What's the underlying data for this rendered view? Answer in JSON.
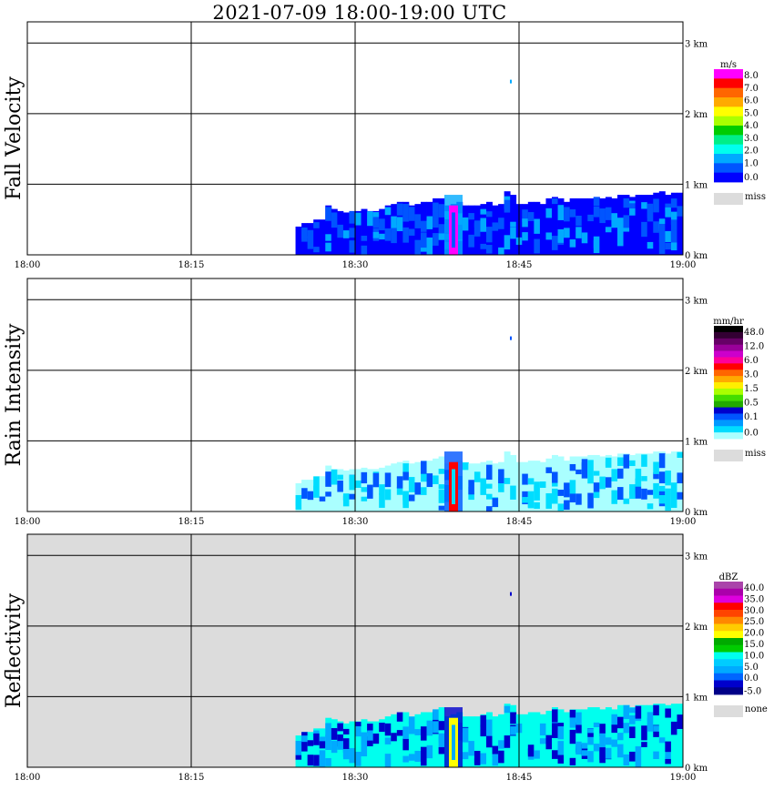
{
  "title": "2021-07-09   18:00-19:00 UTC",
  "x_tick_labels": [
    "18:00",
    "18:15",
    "18:30",
    "18:45",
    "19:00"
  ],
  "y_tick_labels": [
    "0 km",
    "1 km",
    "2 km",
    "3 km"
  ],
  "colors": {
    "frame": "#000000",
    "background": "#ffffff",
    "missing": "#dcdcdc"
  },
  "chart_data": [
    {
      "type": "heatmap",
      "ylabel": "Fall Velocity",
      "unit": "m/s",
      "x_range": [
        "18:00",
        "19:00"
      ],
      "y_range_km": [
        0,
        3.3
      ],
      "grid": true,
      "background": "#ffffff",
      "legend": {
        "placement": "right",
        "colors": [
          "#ff00ff",
          "#ff0000",
          "#ff6600",
          "#ffaa00",
          "#ffff00",
          "#aaff00",
          "#00cc00",
          "#00ee88",
          "#00ffee",
          "#00aaff",
          "#0055ff",
          "#0000ff"
        ],
        "labels": [
          "8.0",
          "7.0",
          "6.0",
          "5.0",
          "4.0",
          "3.0",
          "2.0",
          "1.0",
          "0.0"
        ],
        "missing_label": "miss"
      },
      "echo": {
        "top_km": [
          0.0,
          0.0,
          0.0,
          0.0,
          0.0,
          0.0,
          0.0,
          0.0,
          0.0,
          0.0,
          0.0,
          0.0,
          0.0,
          0.0,
          0.0,
          0.0,
          0.0,
          0.0,
          0.0,
          0.0,
          0.0,
          0.0,
          0.0,
          0.0,
          0.0,
          0.0,
          0.0,
          0.0,
          0.0,
          0.0,
          0.0,
          0.0,
          0.0,
          0.0,
          0.0,
          0.0,
          0.0,
          0.0,
          0.0,
          0.0,
          0.0,
          0.0,
          0.0,
          0.0,
          0.0,
          0.4,
          0.45,
          0.45,
          0.5,
          0.5,
          0.7,
          0.65,
          0.62,
          0.6,
          0.62,
          0.62,
          0.65,
          0.62,
          0.62,
          0.65,
          0.7,
          0.72,
          0.75,
          0.75,
          0.7,
          0.72,
          0.75,
          0.75,
          0.8,
          0.8,
          0.7,
          0.72,
          0.75,
          0.7,
          0.7,
          0.7,
          0.72,
          0.75,
          0.7,
          0.72,
          0.9,
          0.85,
          0.72,
          0.72,
          0.75,
          0.75,
          0.72,
          0.8,
          0.82,
          0.8,
          0.75,
          0.8,
          0.8,
          0.8,
          0.8,
          0.82,
          0.8,
          0.82,
          0.8,
          0.85,
          0.85,
          0.82,
          0.85,
          0.85,
          0.85,
          0.88,
          0.9,
          0.85,
          0.88,
          0.88
        ],
        "dominant_color": "#0000ff",
        "secondary_color": "#0055ff",
        "accent_color": "#00aaff",
        "core_color": "#ff00ff",
        "core_time": "18:39"
      }
    },
    {
      "type": "heatmap",
      "ylabel": "Rain Intensity",
      "unit": "mm/hr",
      "x_range": [
        "18:00",
        "19:00"
      ],
      "y_range_km": [
        0,
        3.3
      ],
      "grid": true,
      "background": "#ffffff",
      "legend": {
        "placement": "right",
        "colors": [
          "#000000",
          "#330033",
          "#660066",
          "#990099",
          "#cc00cc",
          "#ff0099",
          "#ff0000",
          "#ff6600",
          "#ffaa00",
          "#ffee00",
          "#aaff00",
          "#44dd00",
          "#22aa00",
          "#0000cc",
          "#0055ff",
          "#0099ff",
          "#00ddff",
          "#aaffff"
        ],
        "labels": [
          "48.0",
          "12.0",
          "6.0",
          "3.0",
          "1.5",
          "0.5",
          "0.1",
          "0.0"
        ],
        "missing_label": "miss"
      },
      "echo": {
        "top_km": [
          0.0,
          0.0,
          0.0,
          0.0,
          0.0,
          0.0,
          0.0,
          0.0,
          0.0,
          0.0,
          0.0,
          0.0,
          0.0,
          0.0,
          0.0,
          0.0,
          0.0,
          0.0,
          0.0,
          0.0,
          0.0,
          0.0,
          0.0,
          0.0,
          0.0,
          0.0,
          0.0,
          0.0,
          0.0,
          0.0,
          0.0,
          0.0,
          0.0,
          0.0,
          0.0,
          0.0,
          0.0,
          0.0,
          0.0,
          0.0,
          0.0,
          0.0,
          0.0,
          0.0,
          0.0,
          0.4,
          0.45,
          0.45,
          0.5,
          0.5,
          0.65,
          0.6,
          0.6,
          0.58,
          0.6,
          0.6,
          0.62,
          0.6,
          0.6,
          0.62,
          0.65,
          0.68,
          0.7,
          0.72,
          0.68,
          0.7,
          0.72,
          0.72,
          0.75,
          0.78,
          0.68,
          0.7,
          0.72,
          0.7,
          0.68,
          0.68,
          0.7,
          0.72,
          0.68,
          0.7,
          0.85,
          0.8,
          0.7,
          0.7,
          0.72,
          0.72,
          0.7,
          0.75,
          0.8,
          0.78,
          0.72,
          0.78,
          0.78,
          0.78,
          0.8,
          0.8,
          0.78,
          0.8,
          0.78,
          0.82,
          0.82,
          0.8,
          0.82,
          0.82,
          0.82,
          0.85,
          0.85,
          0.82,
          0.85,
          0.85
        ],
        "dominant_color": "#aaffff",
        "secondary_color": "#00ddff",
        "accent_color": "#0055ff",
        "core_color": "#ff0000",
        "core_time": "18:39"
      }
    },
    {
      "type": "heatmap",
      "ylabel": "Reflectivity",
      "unit": "dBZ",
      "x_range": [
        "18:00",
        "19:00"
      ],
      "y_range_km": [
        0,
        3.3
      ],
      "grid": true,
      "background": "#dcdcdc",
      "legend": {
        "placement": "right",
        "colors": [
          "#aa44aa",
          "#aa00aa",
          "#dd00dd",
          "#ff0000",
          "#ff4400",
          "#ff8800",
          "#ffcc00",
          "#ffff00",
          "#00aa00",
          "#00cc00",
          "#00ffee",
          "#00ccff",
          "#00aaff",
          "#0066ff",
          "#0000cc",
          "#000088"
        ],
        "labels": [
          "40.0",
          "35.0",
          "30.0",
          "25.0",
          "20.0",
          "15.0",
          "10.0",
          "5.0",
          "0.0",
          "-5.0"
        ],
        "missing_label": "none"
      },
      "echo": {
        "top_km": [
          0.0,
          0.0,
          0.0,
          0.0,
          0.0,
          0.0,
          0.0,
          0.0,
          0.0,
          0.0,
          0.0,
          0.0,
          0.0,
          0.0,
          0.0,
          0.0,
          0.0,
          0.0,
          0.0,
          0.0,
          0.0,
          0.0,
          0.0,
          0.0,
          0.0,
          0.0,
          0.0,
          0.0,
          0.0,
          0.0,
          0.0,
          0.0,
          0.0,
          0.0,
          0.0,
          0.0,
          0.0,
          0.0,
          0.0,
          0.0,
          0.0,
          0.0,
          0.0,
          0.0,
          0.0,
          0.45,
          0.5,
          0.5,
          0.55,
          0.55,
          0.7,
          0.68,
          0.65,
          0.62,
          0.65,
          0.65,
          0.68,
          0.65,
          0.65,
          0.68,
          0.72,
          0.75,
          0.78,
          0.78,
          0.72,
          0.75,
          0.78,
          0.78,
          0.82,
          0.85,
          0.72,
          0.75,
          0.78,
          0.72,
          0.72,
          0.72,
          0.75,
          0.78,
          0.72,
          0.75,
          0.9,
          0.88,
          0.75,
          0.75,
          0.78,
          0.78,
          0.75,
          0.8,
          0.85,
          0.82,
          0.78,
          0.82,
          0.82,
          0.82,
          0.85,
          0.85,
          0.82,
          0.85,
          0.82,
          0.88,
          0.88,
          0.85,
          0.88,
          0.88,
          0.88,
          0.9,
          0.9,
          0.88,
          0.9,
          0.9
        ],
        "dominant_color": "#00ffee",
        "secondary_color": "#00aaff",
        "accent_color": "#0000cc",
        "core_color": "#ffff00",
        "core_time": "18:39"
      }
    }
  ]
}
